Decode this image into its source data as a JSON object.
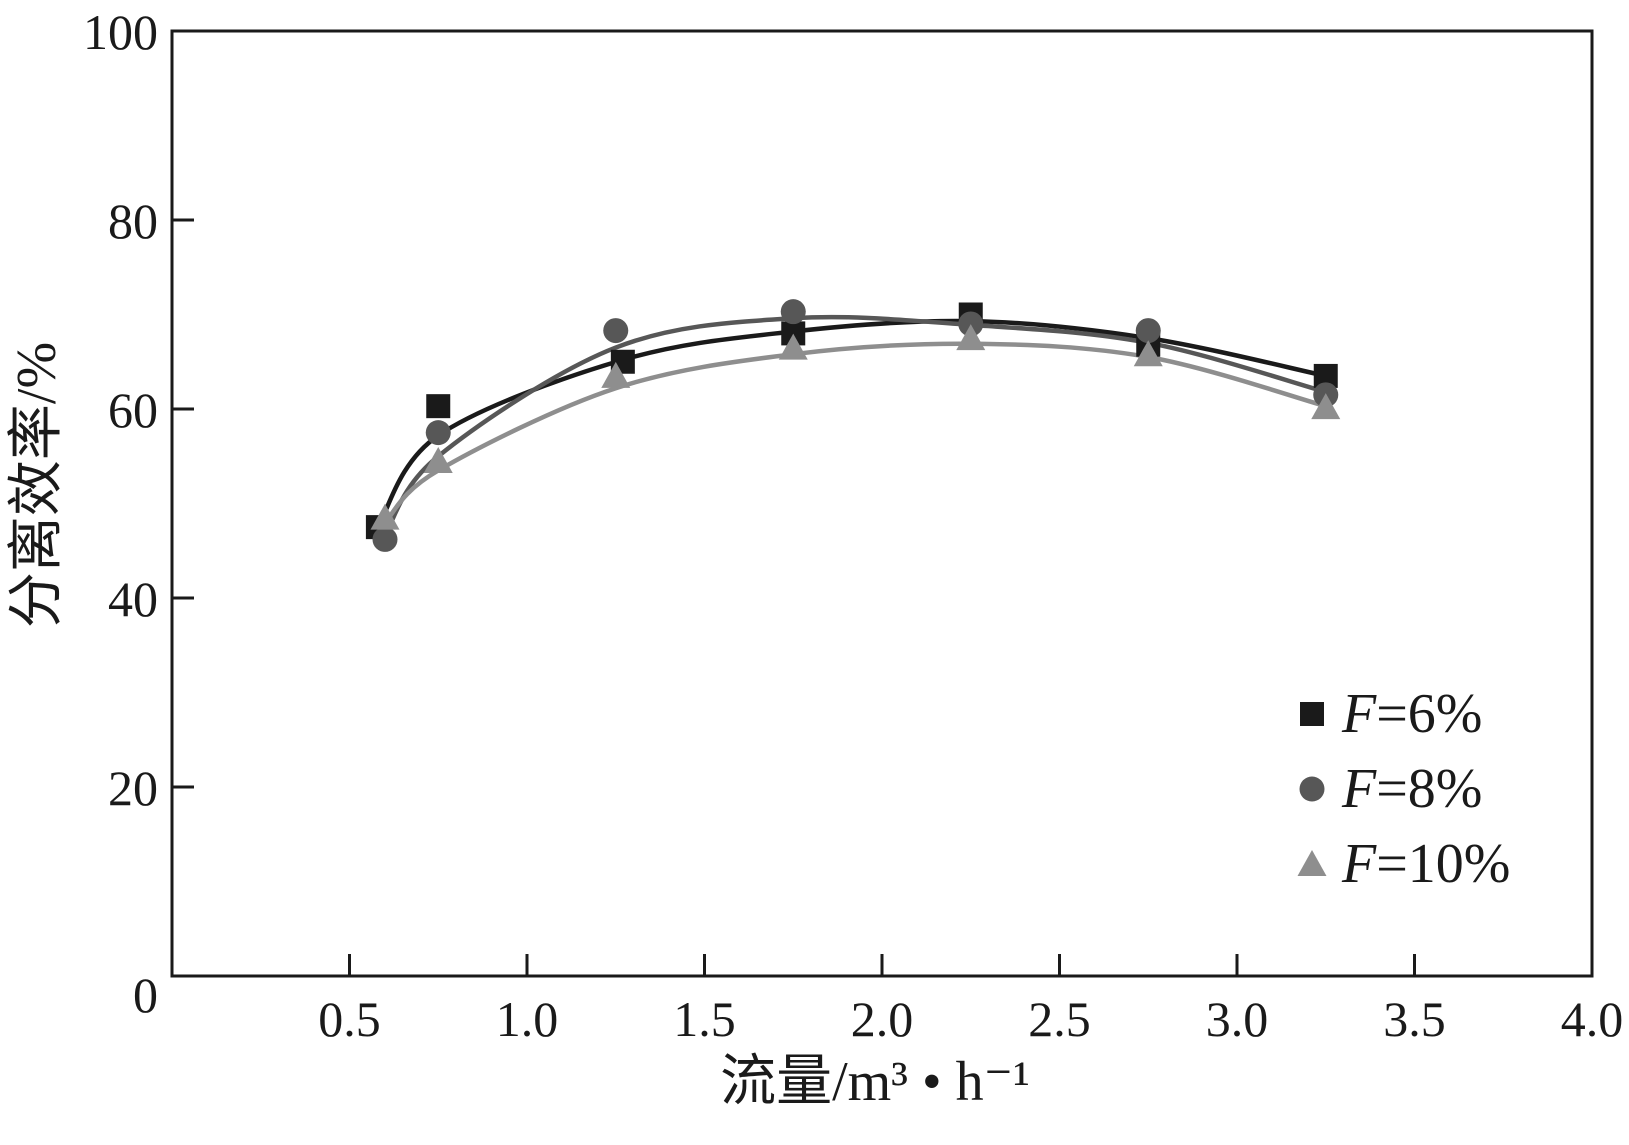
{
  "chart_data": {
    "type": "scatter",
    "title": "",
    "xlabel": "流量/m³ • h⁻¹",
    "ylabel": "分离效率/%",
    "xlim": [
      0,
      4.0
    ],
    "ylim": [
      0,
      100
    ],
    "x_ticks": [
      "0.5",
      "1.0",
      "1.5",
      "2.0",
      "2.5",
      "3.0",
      "3.5",
      "4.0"
    ],
    "y_ticks": [
      "0",
      "20",
      "40",
      "60",
      "80",
      "100"
    ],
    "grid": false,
    "legend_position": "bottom-right",
    "series": [
      {
        "name": "F=6%",
        "name_italic": "F",
        "name_rest": "=6%",
        "marker": "square",
        "color": "#1a1a1a",
        "x": [
          0.58,
          0.75,
          1.27,
          1.75,
          2.25,
          2.75,
          3.25
        ],
        "y": [
          47.5,
          60.3,
          65.0,
          68.0,
          70.0,
          66.8,
          63.5
        ],
        "fit_y": [
          47.5,
          57.2,
          65.2,
          68.2,
          69.3,
          67.5,
          63.5
        ]
      },
      {
        "name": "F=8%",
        "name_italic": "F",
        "name_rest": "=8%",
        "marker": "circle",
        "color": "#575757",
        "x": [
          0.6,
          0.75,
          1.25,
          1.75,
          2.25,
          2.75,
          3.25
        ],
        "y": [
          46.2,
          57.5,
          68.3,
          70.3,
          69.0,
          68.3,
          61.5
        ],
        "fit_y": [
          46.7,
          55.0,
          66.5,
          69.6,
          68.9,
          67.0,
          61.8
        ]
      },
      {
        "name": "F=10%",
        "name_italic": "F",
        "name_rest": "=10%",
        "marker": "triangle",
        "color": "#8e8e8e",
        "x": [
          0.6,
          0.75,
          1.25,
          1.75,
          2.25,
          2.75,
          3.25
        ],
        "y": [
          48.5,
          54.5,
          63.5,
          66.5,
          67.5,
          65.8,
          60.2
        ],
        "fit_y": [
          48.0,
          53.5,
          62.2,
          65.8,
          66.9,
          65.5,
          60.3
        ]
      }
    ]
  }
}
